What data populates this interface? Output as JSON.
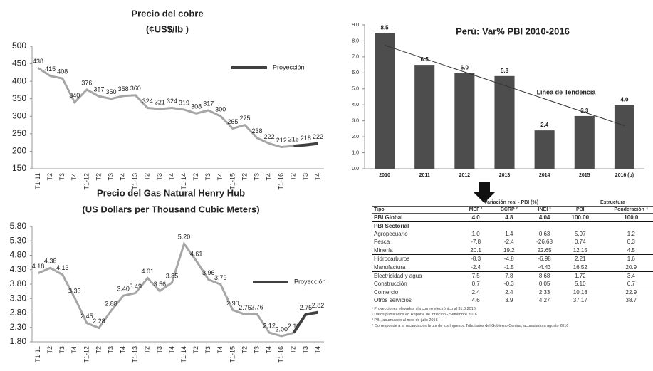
{
  "chart_data": [
    {
      "type": "line",
      "title": "Precio del cobre",
      "subtitle": "(¢US$/lb )",
      "categories": [
        "T1-11",
        "T2",
        "T3",
        "T4",
        "T1-12",
        "T2",
        "T3",
        "T4",
        "T1-13",
        "T2",
        "T3",
        "T4",
        "T1-14",
        "T2",
        "T3",
        "T4",
        "T1-15",
        "T2",
        "T3",
        "T4",
        "T1-16",
        "T2",
        "T3",
        "T4"
      ],
      "series": [
        {
          "color": "#a6a6a6",
          "values": [
            438,
            415,
            408,
            340,
            376,
            357,
            350,
            358,
            360,
            324,
            321,
            324,
            319,
            308,
            317,
            300,
            265,
            275,
            238,
            222,
            212,
            215,
            null,
            null
          ]
        },
        {
          "name": "Proyección",
          "color": "#404040",
          "values": [
            null,
            null,
            null,
            null,
            null,
            null,
            null,
            null,
            null,
            null,
            null,
            null,
            null,
            null,
            null,
            null,
            null,
            null,
            null,
            null,
            null,
            215,
            218,
            222
          ]
        }
      ],
      "ylim": [
        150,
        500
      ],
      "yticks": [
        150,
        200,
        250,
        300,
        350,
        400,
        450,
        500
      ],
      "legend": "upper-right"
    },
    {
      "type": "line",
      "title": "Precio del Gas Natural Henry Hub",
      "subtitle": "(US Dollars per Thousand Cubic Meters)",
      "categories": [
        "T1-11",
        "T2",
        "T3",
        "T4",
        "T1-12",
        "T2",
        "T3",
        "T4",
        "T1-13",
        "T2",
        "T3",
        "T4",
        "T1-14",
        "T2",
        "T3",
        "T4",
        "T1-15",
        "T2",
        "T3",
        "T4",
        "T1-16",
        "T2",
        "T3",
        "T4"
      ],
      "series": [
        {
          "color": "#a6a6a6",
          "values": [
            4.18,
            4.36,
            4.13,
            3.33,
            2.45,
            2.28,
            2.88,
            3.4,
            3.49,
            4.01,
            3.56,
            3.85,
            5.2,
            4.61,
            3.96,
            3.79,
            2.9,
            2.75,
            2.76,
            2.12,
            2.0,
            2.11,
            null,
            null
          ],
          "value_labels": [
            "4.18",
            "4.36",
            "4.13",
            "3.33",
            "2.45",
            "2.28",
            "2.88",
            "3.40",
            "3.49",
            "4.01",
            "3.56",
            "3.85",
            "5.20",
            "4.61",
            "3.96",
            "3.79",
            "2.90",
            "2.75",
            "2.76",
            "2.12",
            "2.00",
            "2.11",
            null,
            null
          ]
        },
        {
          "name": "Proyección",
          "color": "#404040",
          "values": [
            null,
            null,
            null,
            null,
            null,
            null,
            null,
            null,
            null,
            null,
            null,
            null,
            null,
            null,
            null,
            null,
            null,
            null,
            null,
            null,
            null,
            2.11,
            2.75,
            2.82
          ],
          "value_labels": [
            null,
            null,
            null,
            null,
            null,
            null,
            null,
            null,
            null,
            null,
            null,
            null,
            null,
            null,
            null,
            null,
            null,
            null,
            null,
            null,
            null,
            "2.11",
            "2.75",
            "2.82"
          ]
        }
      ],
      "ylim": [
        1.8,
        5.8
      ],
      "yticks": [
        {
          "value": 1.8,
          "label": "1.80"
        },
        {
          "value": 2.3,
          "label": "2.30"
        },
        {
          "value": 2.8,
          "label": "2.80"
        },
        {
          "value": 3.3,
          "label": "3.30"
        },
        {
          "value": 3.8,
          "label": "3.80"
        },
        {
          "value": 4.3,
          "label": "4.30"
        },
        {
          "value": 4.8,
          "label": "4.80"
        },
        {
          "value": 5.3,
          "label": "5.30"
        },
        {
          "value": 5.8,
          "label": "5.80"
        }
      ],
      "legend": "center-right"
    },
    {
      "type": "bar",
      "title": "Perú: Var% PBI 2010-2016",
      "annotation": "Línea de Tendencia",
      "categories": [
        "2010",
        "2011",
        "2012",
        "2013",
        "2014",
        "2015",
        "2016 (p)"
      ],
      "values": [
        8.5,
        6.5,
        6.0,
        5.8,
        2.4,
        3.3,
        4.0
      ],
      "value_labels": [
        "8.5",
        "6.5",
        "6.0",
        "5.8",
        "2.4",
        "3.3",
        "4.0"
      ],
      "color": "#4d4d4d",
      "trendline": true,
      "ylim": [
        0,
        9
      ],
      "yticks": [
        {
          "value": 0,
          "label": "0.0"
        },
        {
          "value": 1,
          "label": "1.0"
        },
        {
          "value": 2,
          "label": "2.0"
        },
        {
          "value": 3,
          "label": "3.0"
        },
        {
          "value": 4,
          "label": "4.0"
        },
        {
          "value": 5,
          "label": "5.0"
        },
        {
          "value": 6,
          "label": "6.0"
        },
        {
          "value": 7,
          "label": "7.0"
        },
        {
          "value": 8,
          "label": "8.0"
        },
        {
          "value": 9,
          "label": "9.0"
        }
      ]
    }
  ],
  "table": {
    "groups": [
      "Variación real - PBI (%)",
      "Estructura"
    ],
    "columns": [
      "Tipo",
      "MEF ¹",
      "BCRP ²",
      "INEI ³",
      "PBI",
      "Ponderación ⁴"
    ],
    "rows": [
      [
        "PBI Global",
        "4.0",
        "4.8",
        "4.04",
        "100.00",
        "100.0"
      ],
      [
        "PBI Sectorial"
      ],
      [
        "Agropecuario",
        "1.0",
        "1.4",
        "0.63",
        "5.97",
        "1.2"
      ],
      [
        "Pesca",
        "-7.8",
        "-2.4",
        "-26.68",
        "0.74",
        "0.3"
      ],
      [
        "Minería",
        "20.1",
        "19.2",
        "22.65",
        "12.15",
        "4.5"
      ],
      [
        "Hidrocarburos",
        "-8.3",
        "-4.8",
        "-6.98",
        "2.21",
        "1.6"
      ],
      [
        "Manufactura",
        "-2.4",
        "-1.5",
        "-4.43",
        "16.52",
        "20.9"
      ],
      [
        "Electricidad y agua",
        "7.5",
        "7.8",
        "8.68",
        "1.72",
        "3.4"
      ],
      [
        "Construcción",
        "0.7",
        "-0.3",
        "0.05",
        "5.10",
        "6.7"
      ],
      [
        "Comercio",
        "2.4",
        "2.4",
        "2.33",
        "10.18",
        "22.9"
      ],
      [
        "Otros servicios",
        "4.6",
        "3.9",
        "4.27",
        "37.17",
        "38.7"
      ]
    ],
    "notes": [
      "¹ Proyecciones elevadas vía correo electrónico al 31.8.2016",
      "² Datos publicados en Reporte de Inflación - Setiembre 2016",
      "³ PBI, acumulado al mes de julio 2016",
      "⁴ Corresponde a la recaudación bruta de los Ingresos Tributarios del Gobierno Central, acumulado a agosto 2016"
    ]
  }
}
